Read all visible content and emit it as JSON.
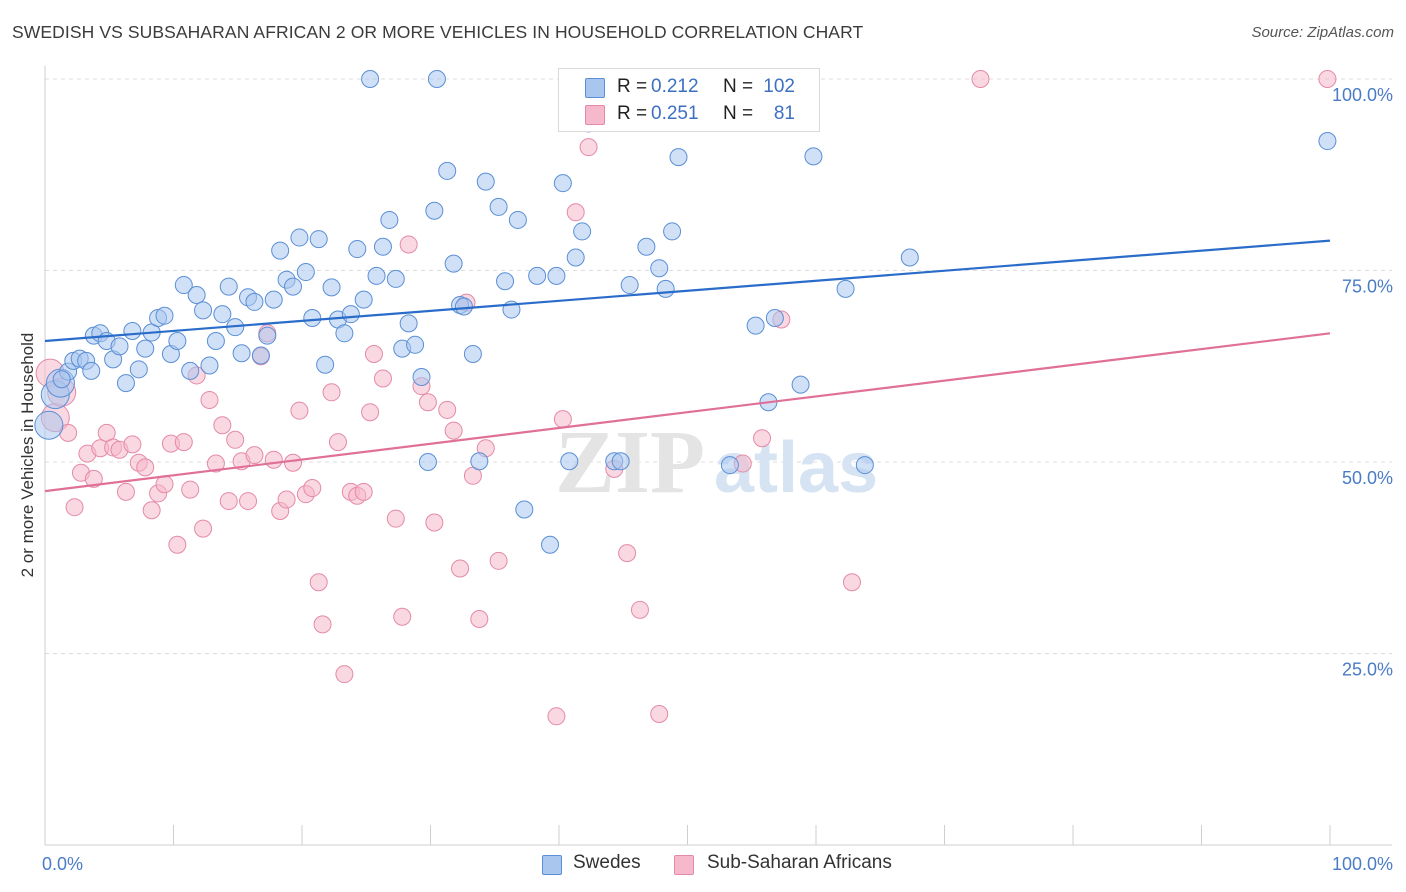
{
  "title": "SWEDISH VS SUBSAHARAN AFRICAN 2 OR MORE VEHICLES IN HOUSEHOLD CORRELATION CHART",
  "source": "Source: ZipAtlas.com",
  "watermark": {
    "zip": "ZIP",
    "atlas": "atlas"
  },
  "colors": {
    "blue": "#a9c7ee",
    "blue_stroke": "#5a8fd6",
    "blue_line": "#2a6cc9",
    "pink": "#f6b8cb",
    "pink_stroke": "#e48aa8",
    "pink_line": "#e07097",
    "tick": "#4a7cc6"
  },
  "legend": {
    "row1": {
      "r_label": "R =",
      "r_value": "0.212",
      "n_label": "N =",
      "n_value": "102"
    },
    "row2": {
      "r_label": "R =",
      "r_value": "0.251",
      "n_label": "N =",
      "n_value": "81"
    }
  },
  "bottom_legend": {
    "series1": "Swedes",
    "series2": "Sub-Saharan Africans"
  },
  "chart_data": {
    "type": "scatter",
    "xlabel": "",
    "ylabel": "2 or more Vehicles in Household",
    "xlim": [
      0,
      100
    ],
    "ylim": [
      0,
      100
    ],
    "x_tick_labels": [
      "0.0%",
      "100.0%"
    ],
    "y_tick_labels": [
      "25.0%",
      "50.0%",
      "75.0%",
      "100.0%"
    ],
    "y_ticks": [
      25,
      50,
      75,
      100
    ],
    "grid": "horizontal dashed",
    "legend_position": "top-center",
    "series": [
      {
        "name": "Swedes",
        "trend": [
          [
            0,
            65.8
          ],
          [
            100,
            78.9
          ]
        ],
        "points": [
          [
            0.3,
            54.8
          ],
          [
            0.8,
            58.8
          ],
          [
            1.2,
            60.3
          ],
          [
            1.8,
            61.8
          ],
          [
            2.2,
            63.2
          ],
          [
            2.7,
            63.5
          ],
          [
            3.2,
            63.2
          ],
          [
            3.8,
            66.5
          ],
          [
            4.3,
            66.8
          ],
          [
            4.8,
            65.8
          ],
          [
            5.3,
            63.4
          ],
          [
            5.8,
            65.1
          ],
          [
            6.3,
            60.3
          ],
          [
            6.8,
            67.1
          ],
          [
            7.3,
            62.1
          ],
          [
            7.8,
            64.8
          ],
          [
            8.3,
            66.9
          ],
          [
            8.8,
            68.8
          ],
          [
            9.3,
            69.1
          ],
          [
            9.8,
            64.1
          ],
          [
            10.3,
            65.8
          ],
          [
            10.8,
            73.1
          ],
          [
            11.3,
            61.9
          ],
          [
            11.8,
            71.8
          ],
          [
            12.3,
            69.8
          ],
          [
            12.8,
            62.6
          ],
          [
            13.3,
            65.8
          ],
          [
            13.8,
            69.3
          ],
          [
            14.3,
            72.9
          ],
          [
            14.8,
            67.6
          ],
          [
            15.3,
            64.2
          ],
          [
            15.8,
            71.5
          ],
          [
            16.3,
            70.9
          ],
          [
            16.8,
            63.9
          ],
          [
            17.3,
            66.5
          ],
          [
            17.8,
            71.2
          ],
          [
            18.3,
            77.6
          ],
          [
            18.8,
            73.8
          ],
          [
            19.3,
            72.9
          ],
          [
            19.8,
            79.3
          ],
          [
            20.3,
            74.8
          ],
          [
            20.8,
            68.8
          ],
          [
            21.3,
            79.1
          ],
          [
            21.8,
            62.7
          ],
          [
            22.3,
            72.8
          ],
          [
            22.8,
            68.6
          ],
          [
            23.3,
            66.8
          ],
          [
            23.8,
            69.3
          ],
          [
            24.3,
            77.8
          ],
          [
            24.8,
            71.2
          ],
          [
            25.3,
            100
          ],
          [
            25.8,
            74.3
          ],
          [
            26.3,
            78.1
          ],
          [
            26.8,
            81.6
          ],
          [
            27.3,
            73.9
          ],
          [
            27.8,
            64.8
          ],
          [
            28.3,
            68.1
          ],
          [
            28.8,
            65.3
          ],
          [
            29.3,
            61.1
          ],
          [
            29.8,
            50
          ],
          [
            30.3,
            82.8
          ],
          [
            30.5,
            100
          ],
          [
            31.3,
            88
          ],
          [
            31.8,
            75.9
          ],
          [
            32.3,
            70.5
          ],
          [
            32.6,
            70.3
          ],
          [
            33.3,
            64.1
          ],
          [
            33.8,
            50.1
          ],
          [
            34.3,
            86.6
          ],
          [
            35.3,
            83.3
          ],
          [
            35.8,
            73.6
          ],
          [
            36.3,
            69.9
          ],
          [
            36.8,
            81.6
          ],
          [
            37.3,
            43.8
          ],
          [
            38.3,
            74.3
          ],
          [
            39.3,
            39.2
          ],
          [
            39.8,
            74.3
          ],
          [
            40.3,
            86.4
          ],
          [
            40.8,
            50.1
          ],
          [
            41.3,
            76.7
          ],
          [
            41.8,
            80.1
          ],
          [
            42.3,
            94.2
          ],
          [
            44.3,
            50.1
          ],
          [
            44.8,
            50.1
          ],
          [
            45.5,
            73.1
          ],
          [
            46.8,
            78.1
          ],
          [
            47.8,
            75.3
          ],
          [
            48.3,
            72.6
          ],
          [
            48.8,
            80.1
          ],
          [
            49.3,
            89.8
          ],
          [
            53.3,
            49.6
          ],
          [
            55.3,
            67.8
          ],
          [
            56.3,
            57.8
          ],
          [
            56.8,
            68.8
          ],
          [
            58.8,
            60.1
          ],
          [
            59.8,
            89.9
          ],
          [
            62.3,
            72.6
          ],
          [
            63.8,
            49.6
          ],
          [
            67.3,
            76.7
          ],
          [
            99.8,
            91.9
          ],
          [
            1.3,
            60.8
          ],
          [
            3.6,
            61.9
          ]
        ]
      },
      {
        "name": "Sub-Saharan Africans",
        "trend": [
          [
            0,
            46.2
          ],
          [
            100,
            66.8
          ]
        ],
        "points": [
          [
            0.4,
            61.6
          ],
          [
            0.8,
            55.8
          ],
          [
            1.3,
            59.1
          ],
          [
            1.8,
            53.8
          ],
          [
            2.3,
            44.1
          ],
          [
            2.8,
            48.6
          ],
          [
            3.3,
            51.1
          ],
          [
            3.8,
            47.8
          ],
          [
            4.3,
            51.8
          ],
          [
            4.8,
            53.8
          ],
          [
            5.3,
            51.9
          ],
          [
            5.8,
            51.6
          ],
          [
            6.3,
            46.1
          ],
          [
            6.8,
            52.3
          ],
          [
            7.3,
            49.9
          ],
          [
            7.8,
            49.3
          ],
          [
            8.3,
            43.7
          ],
          [
            8.8,
            45.9
          ],
          [
            9.3,
            47.1
          ],
          [
            9.8,
            52.4
          ],
          [
            10.3,
            39.2
          ],
          [
            10.8,
            52.6
          ],
          [
            11.3,
            46.4
          ],
          [
            11.8,
            61.3
          ],
          [
            12.3,
            41.3
          ],
          [
            12.8,
            58.1
          ],
          [
            13.3,
            49.8
          ],
          [
            13.8,
            54.8
          ],
          [
            14.3,
            44.9
          ],
          [
            14.8,
            52.9
          ],
          [
            15.3,
            50.1
          ],
          [
            15.8,
            44.9
          ],
          [
            16.3,
            50.9
          ],
          [
            16.8,
            63.8
          ],
          [
            17.3,
            66.8
          ],
          [
            17.8,
            50.3
          ],
          [
            18.3,
            43.6
          ],
          [
            18.8,
            45.1
          ],
          [
            19.3,
            49.9
          ],
          [
            19.8,
            56.7
          ],
          [
            20.3,
            45.8
          ],
          [
            20.8,
            46.6
          ],
          [
            21.3,
            34.3
          ],
          [
            21.6,
            28.8
          ],
          [
            22.3,
            59.1
          ],
          [
            22.8,
            52.6
          ],
          [
            23.3,
            22.3
          ],
          [
            23.8,
            46.1
          ],
          [
            24.3,
            45.6
          ],
          [
            24.8,
            46.1
          ],
          [
            25.3,
            56.5
          ],
          [
            25.6,
            64.1
          ],
          [
            26.3,
            60.9
          ],
          [
            27.3,
            42.6
          ],
          [
            27.8,
            29.8
          ],
          [
            28.3,
            78.4
          ],
          [
            29.3,
            59.9
          ],
          [
            29.8,
            57.8
          ],
          [
            30.3,
            42.1
          ],
          [
            31.3,
            56.8
          ],
          [
            31.8,
            54.1
          ],
          [
            32.3,
            36.1
          ],
          [
            32.8,
            70.8
          ],
          [
            33.3,
            48.2
          ],
          [
            33.8,
            29.5
          ],
          [
            34.3,
            51.8
          ],
          [
            35.3,
            37.1
          ],
          [
            39.8,
            16.8
          ],
          [
            40.3,
            55.6
          ],
          [
            41.3,
            82.6
          ],
          [
            42.3,
            91.1
          ],
          [
            44.3,
            49.1
          ],
          [
            45.3,
            38.1
          ],
          [
            46.3,
            30.7
          ],
          [
            47.8,
            17.1
          ],
          [
            54.3,
            49.8
          ],
          [
            55.8,
            53.1
          ],
          [
            57.3,
            68.6
          ],
          [
            62.8,
            34.3
          ],
          [
            72.8,
            100
          ],
          [
            99.8,
            100
          ]
        ]
      }
    ]
  }
}
